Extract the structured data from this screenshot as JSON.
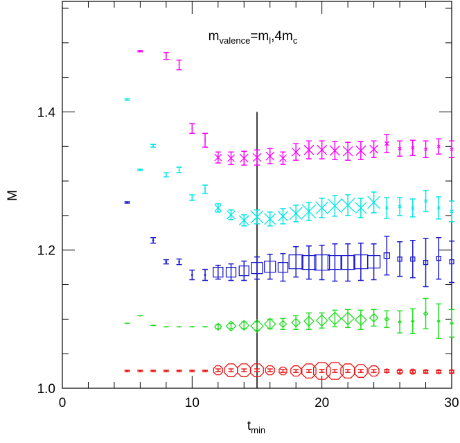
{
  "chart_data": {
    "type": "scatter",
    "title_parts": [
      {
        "text": "m"
      },
      {
        "text": "valence",
        "sub": true
      },
      {
        "text": "=m"
      },
      {
        "text": "l",
        "sub": true
      },
      {
        "text": ",4m"
      },
      {
        "text": "c",
        "sub": true
      }
    ],
    "xlabel_parts": [
      {
        "text": "t"
      },
      {
        "text": "min",
        "sub": true
      }
    ],
    "ylabel": "M",
    "xlim": [
      0,
      30
    ],
    "ylim": [
      1.0,
      1.56
    ],
    "xticks": [
      0,
      10,
      20,
      30
    ],
    "yticks": [
      {
        "value": 1.0,
        "label": "1.0"
      },
      1.2,
      1.4
    ],
    "xminorticks": [
      2,
      4,
      6,
      8,
      12,
      14,
      16,
      18,
      22,
      24,
      26,
      28
    ],
    "yminorticks": [
      1.05,
      1.1,
      1.15,
      1.25,
      1.3,
      1.35,
      1.45,
      1.5,
      1.55
    ],
    "vline": {
      "x": 15,
      "ylim": [
        1.0,
        1.4
      ]
    },
    "x": [
      5,
      6,
      7,
      8,
      9,
      10,
      11,
      12,
      13,
      14,
      15,
      16,
      17,
      18,
      19,
      20,
      21,
      22,
      23,
      24,
      25,
      26,
      27,
      28,
      29,
      30
    ],
    "series": [
      {
        "color": "#ff00ff",
        "marker": "x",
        "values": [
          null,
          1.488,
          null,
          1.481,
          1.468,
          1.376,
          1.359,
          1.334,
          1.333,
          1.333,
          1.334,
          1.336,
          1.333,
          1.342,
          1.345,
          1.345,
          1.344,
          1.343,
          1.344,
          1.346,
          1.354,
          1.347,
          1.348,
          1.346,
          1.35,
          1.346
        ],
        "errors": [
          null,
          0.001,
          null,
          0.005,
          0.007,
          0.007,
          0.01,
          0.008,
          0.009,
          0.01,
          0.011,
          0.011,
          0.009,
          0.012,
          0.013,
          0.013,
          0.013,
          0.013,
          0.013,
          0.012,
          0.013,
          0.011,
          0.011,
          0.012,
          0.011,
          0.012
        ],
        "sizes": [
          null,
          0,
          null,
          0,
          0,
          0,
          0,
          5,
          5,
          6,
          6,
          6,
          5,
          6,
          7,
          7,
          7,
          7,
          7,
          6,
          3,
          2,
          2,
          2,
          2,
          2
        ]
      },
      {
        "color": "#00e5e5",
        "marker": "x",
        "values": [
          1.418,
          1.316,
          1.351,
          1.309,
          1.316,
          1.276,
          1.288,
          1.261,
          1.251,
          1.243,
          1.248,
          1.245,
          1.249,
          1.253,
          1.256,
          1.261,
          1.264,
          1.265,
          1.261,
          1.269,
          1.261,
          1.263,
          1.261,
          1.271,
          1.261,
          1.256
        ],
        "errors": [
          0.001,
          0.001,
          0.002,
          0.003,
          0.004,
          0.004,
          0.006,
          0.006,
          0.007,
          0.008,
          0.01,
          0.01,
          0.011,
          0.012,
          0.013,
          0.014,
          0.015,
          0.015,
          0.014,
          0.015,
          0.015,
          0.013,
          0.013,
          0.015,
          0.016,
          0.015
        ],
        "sizes": [
          0,
          0,
          0,
          0,
          0,
          0,
          0,
          5,
          6,
          7,
          9,
          8,
          7,
          9,
          10,
          9,
          10,
          10,
          8,
          9,
          2,
          2,
          2,
          2,
          2,
          2
        ]
      },
      {
        "color": "#1a1acc",
        "marker": "square",
        "values": [
          1.269,
          null,
          1.214,
          1.183,
          1.183,
          1.164,
          1.164,
          1.168,
          1.168,
          1.17,
          1.174,
          1.176,
          1.175,
          1.183,
          1.182,
          1.182,
          1.182,
          1.182,
          1.183,
          1.183,
          1.192,
          1.187,
          1.187,
          1.182,
          1.188,
          1.183
        ],
        "errors": [
          0.001,
          null,
          0.004,
          0.003,
          0.004,
          0.007,
          0.008,
          0.01,
          0.012,
          0.014,
          0.016,
          0.018,
          0.02,
          0.022,
          0.024,
          0.025,
          0.027,
          0.027,
          0.027,
          0.026,
          0.028,
          0.025,
          0.027,
          0.035,
          0.03,
          0.03
        ],
        "sizes": [
          0,
          null,
          0,
          0,
          0,
          0,
          0,
          7,
          7,
          7,
          8,
          8,
          7,
          10,
          10,
          11,
          10,
          10,
          10,
          9,
          4,
          3,
          3,
          3,
          3,
          3
        ]
      },
      {
        "color": "#22dd22",
        "marker": "diamond",
        "values": [
          1.094,
          1.105,
          1.091,
          1.089,
          1.089,
          1.089,
          1.089,
          1.089,
          1.09,
          1.091,
          1.09,
          1.093,
          1.093,
          1.095,
          1.097,
          1.098,
          1.101,
          1.101,
          1.099,
          1.102,
          1.1,
          1.096,
          1.097,
          1.108,
          1.097,
          1.094
        ],
        "errors": [
          0,
          0,
          0,
          0,
          0,
          0,
          0,
          0.003,
          0.004,
          0.005,
          0.006,
          0.007,
          0.008,
          0.01,
          0.012,
          0.011,
          0.012,
          0.013,
          0.014,
          0.012,
          0.012,
          0.016,
          0.018,
          0.022,
          0.025,
          0.02
        ],
        "sizes": [
          0,
          0,
          0,
          0,
          0,
          0,
          0,
          5,
          7,
          7,
          9,
          8,
          5,
          6,
          7,
          8,
          9,
          9,
          8,
          6,
          3,
          2,
          2,
          3,
          2,
          2
        ]
      },
      {
        "color": "#ee1111",
        "marker": "octagon",
        "values": [
          1.025,
          1.025,
          1.025,
          1.025,
          1.025,
          1.025,
          1.025,
          1.026,
          1.026,
          1.026,
          1.026,
          1.026,
          1.025,
          1.025,
          1.025,
          1.025,
          1.025,
          1.025,
          1.025,
          1.025,
          1.025,
          1.024,
          1.024,
          1.024,
          1.024,
          1.024
        ],
        "errors": [
          0.001,
          0.001,
          0.001,
          0.001,
          0.001,
          0.001,
          0.001,
          0.002,
          0.002,
          0.002,
          0.002,
          0.002,
          0.002,
          0.002,
          0.002,
          0.002,
          0.002,
          0.002,
          0.002,
          0.002,
          0.002,
          0.002,
          0.002,
          0.002,
          0.002,
          0.002
        ],
        "sizes": [
          0,
          0,
          0,
          0,
          0,
          0,
          0,
          7,
          10,
          10,
          10,
          7,
          6,
          8,
          11,
          13,
          13,
          11,
          10,
          8,
          3,
          4,
          4,
          3,
          3,
          3
        ]
      }
    ]
  }
}
